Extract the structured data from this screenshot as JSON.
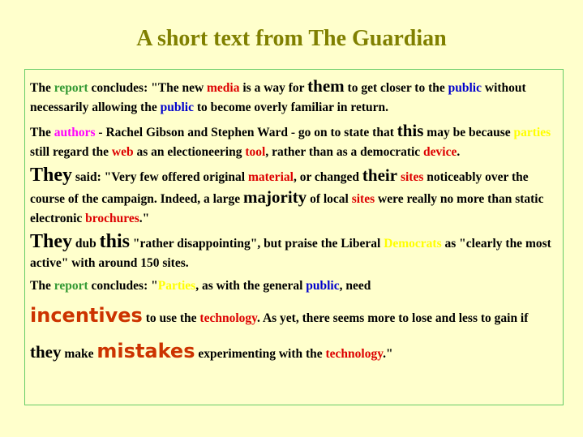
{
  "title": "A short text from The Guardian",
  "paragraphs": [
    [
      {
        "t": "The ",
        "c": "black"
      },
      {
        "t": "report",
        "c": "green"
      },
      {
        "t": " concludes: \"The new ",
        "c": "black"
      },
      {
        "t": "media",
        "c": "red"
      },
      {
        "t": " is a way for ",
        "c": "black"
      },
      {
        "t": "them",
        "c": "black",
        "s": 2
      },
      {
        "t": " to get closer to the ",
        "c": "black"
      },
      {
        "t": "public",
        "c": "blue"
      },
      {
        "t": " without necessarily allowing the ",
        "c": "black"
      },
      {
        "t": "public",
        "c": "blue"
      },
      {
        "t": " to become overly familiar in return.",
        "c": "black"
      }
    ],
    [
      {
        "t": "The ",
        "c": "black"
      },
      {
        "t": "authors",
        "c": "magenta"
      },
      {
        "t": " - Rachel Gibson and Stephen Ward - go on to state that ",
        "c": "black"
      },
      {
        "t": "this",
        "c": "black",
        "s": 2
      },
      {
        "t": " may be because ",
        "c": "black"
      },
      {
        "t": "parties",
        "c": "yellow"
      },
      {
        "t": " still regard the ",
        "c": "black"
      },
      {
        "t": "web",
        "c": "red"
      },
      {
        "t": " as an electioneering ",
        "c": "black"
      },
      {
        "t": "tool",
        "c": "red"
      },
      {
        "t": ", rather than as a democratic ",
        "c": "black"
      },
      {
        "t": "device",
        "c": "red"
      },
      {
        "t": ".",
        "c": "black"
      }
    ],
    [
      {
        "t": "They",
        "c": "black",
        "s": 3
      },
      {
        "t": " said: \"Very few offered original ",
        "c": "black"
      },
      {
        "t": "material",
        "c": "red"
      },
      {
        "t": ", or changed ",
        "c": "black"
      },
      {
        "t": "their",
        "c": "black",
        "s": 2
      },
      {
        "t": " ",
        "c": "black"
      },
      {
        "t": "sites",
        "c": "red"
      },
      {
        "t": " noticeably over the course of the campaign. Indeed, a large ",
        "c": "black"
      },
      {
        "t": "majority",
        "c": "black",
        "s": 2
      },
      {
        "t": " of local ",
        "c": "black"
      },
      {
        "t": "sites",
        "c": "red"
      },
      {
        "t": " were really no more than static electronic ",
        "c": "black"
      },
      {
        "t": "brochures",
        "c": "red"
      },
      {
        "t": ".\"",
        "c": "black"
      }
    ],
    [
      {
        "t": "They",
        "c": "black",
        "s": 3
      },
      {
        "t": " dub ",
        "c": "black"
      },
      {
        "t": "this",
        "c": "black",
        "s": 3
      },
      {
        "t": " \"rather disappointing\", but praise the Liberal ",
        "c": "black"
      },
      {
        "t": "Democrats",
        "c": "yellow"
      },
      {
        "t": " as \"clearly the most active\" with around 150 sites.",
        "c": "black"
      }
    ],
    [
      {
        "t": "The ",
        "c": "black"
      },
      {
        "t": "report",
        "c": "green"
      },
      {
        "t": " concludes: \"",
        "c": "black"
      },
      {
        "t": "Parties",
        "c": "yellow"
      },
      {
        "t": ", as with the general ",
        "c": "black"
      },
      {
        "t": "public",
        "c": "blue"
      },
      {
        "t": ", need",
        "c": "black"
      }
    ],
    [
      {
        "t": "incentives",
        "c": "redbig",
        "s": 3,
        "f": "sans"
      },
      {
        "t": " to use the ",
        "c": "black"
      },
      {
        "t": "technology",
        "c": "red"
      },
      {
        "t": ". As yet, there seems more to lose and less to gain if ",
        "c": "black"
      },
      {
        "t": "they",
        "c": "black",
        "s": 2
      },
      {
        "t": " make ",
        "c": "black"
      },
      {
        "t": "mistakes",
        "c": "redbig",
        "s": 3,
        "f": "sans"
      },
      {
        "t": " experimenting with the ",
        "c": "black"
      },
      {
        "t": "technology",
        "c": "red"
      },
      {
        "t": ".\"",
        "c": "black"
      }
    ]
  ]
}
